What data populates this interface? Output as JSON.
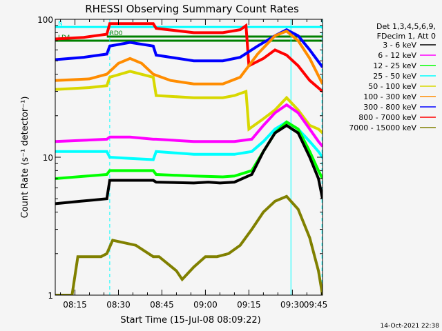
{
  "chart_data": {
    "type": "line",
    "title": "RHESSI Observing Summary Count Rates",
    "xlabel": "Start Time (15-Jul-08 08:09:22)",
    "ylabel": "Count Rate (s⁻¹ detector⁻¹)",
    "y_scale": "log",
    "ylim": [
      1,
      100
    ],
    "y_ticks": [
      {
        "value": 1,
        "label": "1"
      },
      {
        "value": 10,
        "label": "10"
      },
      {
        "value": 100,
        "label": "100"
      }
    ],
    "x_range_minutes": [
      8.2,
      100.4
    ],
    "x_ticks": [
      {
        "minute": 15,
        "label": "08:15"
      },
      {
        "minute": 30,
        "label": "08:30"
      },
      {
        "minute": 45,
        "label": "08:45"
      },
      {
        "minute": 60,
        "label": "09:00"
      },
      {
        "minute": 75,
        "label": "09:15"
      },
      {
        "minute": 90,
        "label": "09:30"
      },
      {
        "minute": 105,
        "label": "09:45"
      }
    ],
    "legend_header": [
      "Det 1,3,4,5,6,9,",
      "FDecim 1, Att 0"
    ],
    "legend_position": "right",
    "series": [
      {
        "name": "3 - 6 keV",
        "color": "#000000",
        "x": [
          8.2,
          17,
          26,
          27,
          42,
          43,
          56,
          61,
          65,
          70,
          76,
          80,
          84,
          88,
          92,
          96,
          99,
          100.4
        ],
        "y": [
          4.6,
          4.8,
          5.0,
          6.8,
          6.8,
          6.6,
          6.5,
          6.6,
          6.5,
          6.6,
          7.5,
          11,
          15,
          17,
          15,
          10,
          7,
          5
        ]
      },
      {
        "name": "6 - 12 keV",
        "color": "#ff00ff",
        "x": [
          8.2,
          26,
          27,
          34,
          42,
          43,
          56,
          66,
          70,
          76,
          80,
          84,
          88,
          92,
          96,
          99,
          100.4
        ],
        "y": [
          13,
          13.5,
          14,
          14,
          13.5,
          13.5,
          13,
          13,
          13,
          13.5,
          17,
          21,
          24,
          21,
          16,
          13,
          12
        ]
      },
      {
        "name": "12 - 25 keV",
        "color": "#00ff00",
        "x": [
          8.2,
          26,
          27,
          42,
          43,
          56,
          66,
          70,
          76,
          80,
          84,
          88,
          92,
          96,
          99,
          100.4
        ],
        "y": [
          7,
          7.5,
          8,
          8,
          7.5,
          7.3,
          7.2,
          7.3,
          8,
          11,
          15,
          18,
          16,
          11,
          8,
          7
        ]
      },
      {
        "name": "25 - 50 keV",
        "color": "#00ffff",
        "x": [
          8.2,
          26,
          27,
          34,
          42,
          43,
          56,
          66,
          70,
          76,
          80,
          84,
          88,
          92,
          96,
          99,
          100.4
        ],
        "y": [
          11,
          11,
          10,
          9.8,
          9.6,
          11,
          10.5,
          10.5,
          10.5,
          11,
          13,
          16,
          18,
          16,
          13,
          11,
          10
        ]
      },
      {
        "name": "50 - 100 keV",
        "color": "#d8d800",
        "x": [
          8.2,
          20,
          26,
          27,
          34,
          42,
          43,
          56,
          66,
          70,
          74,
          75,
          80,
          84,
          88,
          92,
          96,
          99,
          100.4
        ],
        "y": [
          31,
          32,
          33,
          38,
          42,
          38,
          28,
          27,
          27,
          28,
          30,
          16,
          19,
          22,
          27,
          22,
          17,
          16,
          15
        ]
      },
      {
        "name": "100 - 300 keV",
        "color": "#ff8c00",
        "x": [
          8.2,
          20,
          26,
          30,
          34,
          38,
          42,
          48,
          56,
          66,
          72,
          78,
          84,
          88,
          92,
          96,
          100.4
        ],
        "y": [
          36,
          37,
          40,
          48,
          52,
          48,
          40,
          36,
          34,
          34,
          38,
          56,
          76,
          82,
          70,
          52,
          34
        ]
      },
      {
        "name": "300 - 800 keV",
        "color": "#0000ff",
        "x": [
          8.2,
          18,
          26,
          27,
          34,
          42,
          43,
          56,
          66,
          72,
          78,
          84,
          88,
          92,
          96,
          100.4
        ],
        "y": [
          51,
          53,
          56,
          64,
          68,
          64,
          55,
          50,
          50,
          53,
          64,
          76,
          84,
          76,
          60,
          45
        ]
      },
      {
        "name": "800 - 7000 keV",
        "color": "#ff0000",
        "x": [
          8.2,
          18,
          26,
          27,
          42,
          43,
          56,
          66,
          72,
          74,
          75,
          80,
          84,
          88,
          92,
          96,
          100.4
        ],
        "y": [
          72,
          74,
          78,
          93,
          93,
          86,
          80,
          80,
          84,
          90,
          46,
          52,
          60,
          55,
          46,
          36,
          30
        ]
      },
      {
        "name": "7000 - 15000 keV",
        "color": "#808000",
        "x": [
          8.2,
          14,
          16,
          24,
          26,
          28,
          36,
          42,
          44,
          50,
          52,
          56,
          60,
          64,
          68,
          72,
          76,
          80,
          84,
          88,
          92,
          96,
          99,
          100.4
        ],
        "y": [
          1.0,
          1.0,
          1.9,
          1.9,
          2.0,
          2.5,
          2.3,
          1.9,
          1.9,
          1.5,
          1.3,
          1.6,
          1.9,
          1.9,
          2.0,
          2.3,
          3.0,
          4.0,
          4.8,
          5.2,
          4.2,
          2.6,
          1.5,
          1.0
        ]
      }
    ],
    "states": [
      {
        "label": "LD4",
        "color": "#008000",
        "x0": 8.2,
        "x1": 100.4,
        "y": 70
      },
      {
        "label": "RD0",
        "color": "#008000",
        "x0": 26,
        "x1": 100.4,
        "y": 75
      },
      {
        "label": "N",
        "color": "#00ffff",
        "x0": 8.2,
        "x1": 100.4,
        "y": 88
      }
    ],
    "vertical_markers": [
      {
        "minute": 8.2,
        "color": "#00ffff",
        "style": "solid"
      },
      {
        "minute": 27,
        "color": "#00ffff",
        "style": "dashed"
      },
      {
        "minute": 89.5,
        "color": "#00ffff",
        "style": "solid"
      },
      {
        "minute": 100.2,
        "color": "#00ffff",
        "style": "dashed"
      }
    ]
  },
  "footer": {
    "timestamp": "14-Oct-2021 22:38"
  }
}
